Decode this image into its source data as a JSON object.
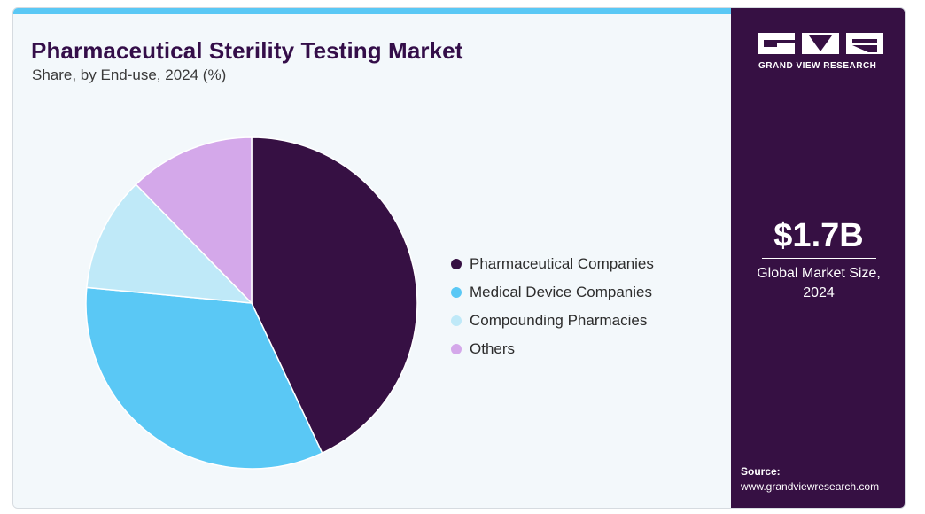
{
  "header": {
    "title": "Pharmaceutical Sterility Testing Market",
    "subtitle": "Share, by End-use, 2024 (%)"
  },
  "brand": {
    "logo_text": "GRAND VIEW RESEARCH"
  },
  "market": {
    "value": "$1.7B",
    "label_line1": "Global Market Size,",
    "label_line2": "2024"
  },
  "source": {
    "label": "Source:",
    "url": "www.grandviewresearch.com"
  },
  "colors": {
    "accent_bar": "#5ac8f5",
    "right_panel": "#361043",
    "title": "#340e49"
  },
  "chart_data": {
    "type": "pie",
    "title": "Pharmaceutical Sterility Testing Market",
    "subtitle": "Share, by End-use, 2024 (%)",
    "categories": [
      "Pharmaceutical Companies",
      "Medical Device Companies",
      "Compounding Pharmacies",
      "Others"
    ],
    "values": [
      43.0,
      33.5,
      11.2,
      12.3
    ],
    "colors": [
      "#361043",
      "#5ac8f5",
      "#bfe9f8",
      "#d4a8ea"
    ],
    "start_angle_deg": 0,
    "direction": "clockwise",
    "legend_position": "right"
  }
}
